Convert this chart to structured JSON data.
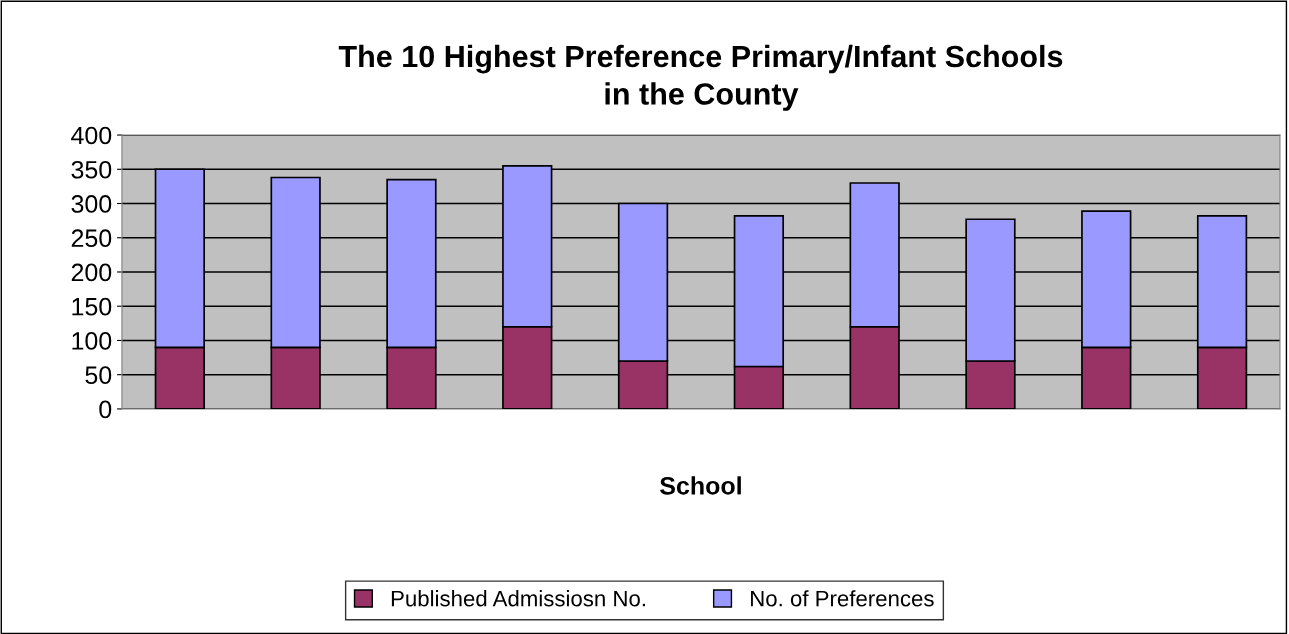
{
  "chart_data": {
    "type": "bar",
    "title": "The 10 Highest Preference Primary/Infant Schools\nin the County",
    "xlabel": "School",
    "categories": [
      null,
      null,
      null,
      null,
      null,
      null,
      null,
      null,
      null,
      null
    ],
    "stacked": true,
    "series": [
      {
        "name": "Published Admissiosn No.",
        "color": "#993366",
        "values": [
          90,
          90,
          90,
          120,
          70,
          62,
          120,
          70,
          90,
          90
        ]
      },
      {
        "name": "No. of Preferences",
        "color": "#9999ff",
        "values": [
          260,
          248,
          245,
          235,
          230,
          220,
          210,
          207,
          199,
          192
        ]
      }
    ],
    "ylim": [
      0,
      400
    ],
    "yticks": [
      0,
      50,
      100,
      150,
      200,
      250,
      300,
      350,
      400
    ],
    "grid": "y",
    "legend": "bottom"
  }
}
